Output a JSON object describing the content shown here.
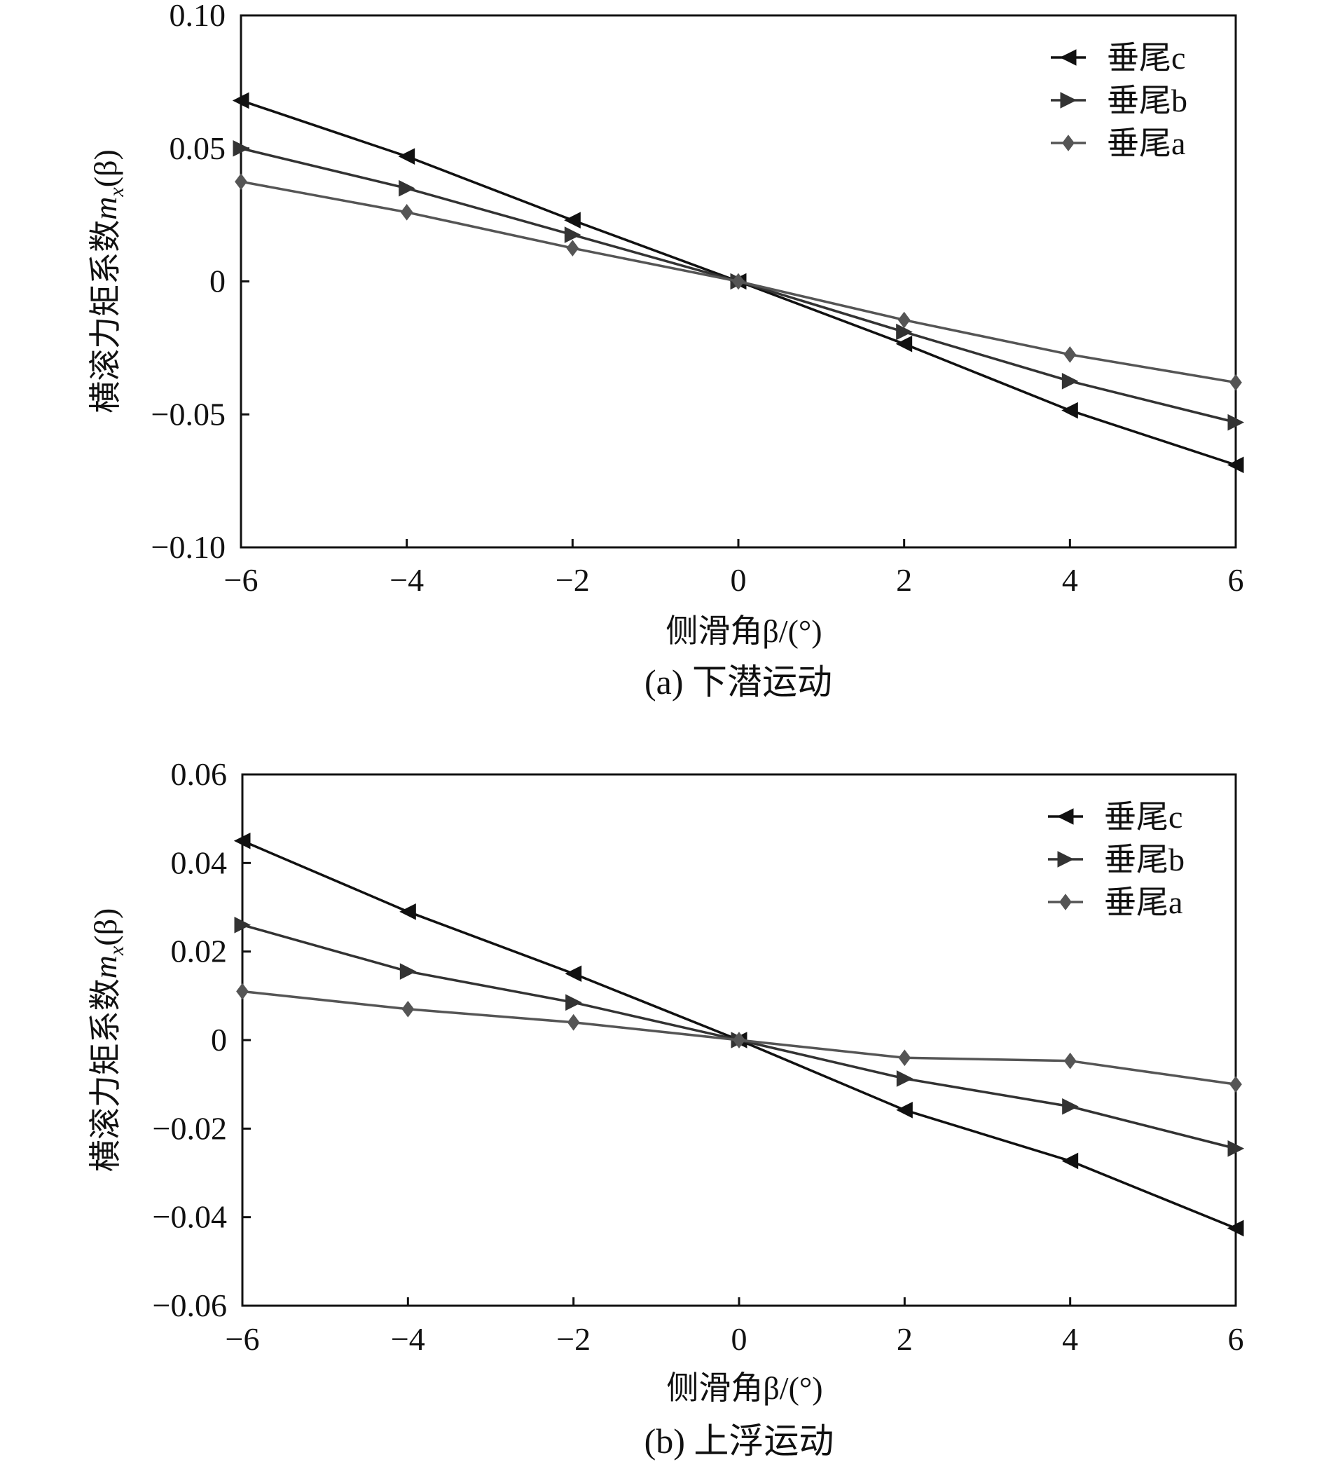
{
  "chart_data": [
    {
      "type": "line",
      "caption": "(a) 下潜运动",
      "xlabel": "侧滑角β/(°)",
      "ylabel": "横滚力矩系数mx(β)",
      "ylabel_main": "横滚力矩系数",
      "ylabel_var": "m",
      "ylabel_sub": "x",
      "ylabel_arg": "(β)",
      "xlim": [
        -6,
        6
      ],
      "ylim": [
        -0.1,
        0.1
      ],
      "xticks": [
        -6,
        -4,
        -2,
        0,
        2,
        4,
        6
      ],
      "xtick_labels": [
        "−6",
        "−4",
        "−2",
        "0",
        "2",
        "4",
        "6"
      ],
      "yticks": [
        -0.1,
        -0.05,
        0,
        0.05,
        0.1
      ],
      "ytick_labels": [
        "−0.10",
        "−0.05",
        "0",
        "0.05",
        "0.10"
      ],
      "legend_position": "top-right",
      "x": [
        -6,
        -4,
        -2,
        0,
        2,
        4,
        6
      ],
      "series": [
        {
          "name": "垂尾c",
          "marker": "triangle-left",
          "color": "#111111",
          "values": [
            0.068,
            0.047,
            0.023,
            0,
            -0.0235,
            -0.0485,
            -0.069
          ]
        },
        {
          "name": "垂尾b",
          "marker": "triangle-right",
          "color": "#333333",
          "values": [
            0.05,
            0.035,
            0.0175,
            0,
            -0.019,
            -0.0375,
            -0.053
          ]
        },
        {
          "name": "垂尾a",
          "marker": "diamond",
          "color": "#555555",
          "values": [
            0.0375,
            0.026,
            0.0125,
            0,
            -0.0145,
            -0.0275,
            -0.038
          ]
        }
      ]
    },
    {
      "type": "line",
      "caption": "(b) 上浮运动",
      "xlabel": "侧滑角β/(°)",
      "ylabel": "横滚力矩系数mx(β)",
      "ylabel_main": "横滚力矩系数",
      "ylabel_var": "m",
      "ylabel_sub": "x",
      "ylabel_arg": "(β)",
      "xlim": [
        -6,
        6
      ],
      "ylim": [
        -0.06,
        0.06
      ],
      "xticks": [
        -6,
        -4,
        -2,
        0,
        2,
        4,
        6
      ],
      "xtick_labels": [
        "−6",
        "−4",
        "−2",
        "0",
        "2",
        "4",
        "6"
      ],
      "yticks": [
        -0.06,
        -0.04,
        -0.02,
        0,
        0.02,
        0.04,
        0.06
      ],
      "ytick_labels": [
        "−0.06",
        "−0.04",
        "−0.02",
        "0",
        "0.02",
        "0.04",
        "0.06"
      ],
      "legend_position": "top-right",
      "x": [
        -6,
        -4,
        -2,
        0,
        2,
        4,
        6
      ],
      "series": [
        {
          "name": "垂尾c",
          "marker": "triangle-left",
          "color": "#111111",
          "values": [
            0.045,
            0.029,
            0.015,
            0,
            -0.0158,
            -0.0273,
            -0.0425
          ]
        },
        {
          "name": "垂尾b",
          "marker": "triangle-right",
          "color": "#333333",
          "values": [
            0.026,
            0.0155,
            0.0085,
            0,
            -0.0087,
            -0.015,
            -0.0245
          ]
        },
        {
          "name": "垂尾a",
          "marker": "diamond",
          "color": "#555555",
          "values": [
            0.011,
            0.007,
            0.004,
            0,
            -0.004,
            -0.0047,
            -0.01
          ]
        }
      ]
    }
  ]
}
